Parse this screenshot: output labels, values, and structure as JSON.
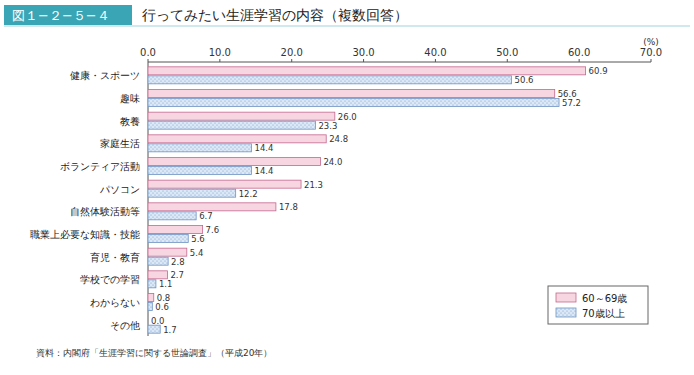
{
  "chart_data": {
    "type": "bar",
    "orientation": "horizontal",
    "figure_number": "図１−２−５−４",
    "title": "行ってみたい生涯学習の内容（複数回答）",
    "x_label": "(%)",
    "source": "資料：内閣府「生涯学習に関する世論調査」（平成20年）",
    "categories": [
      "健康・スポーツ",
      "趣味",
      "教養",
      "家庭生活",
      "ボランティア活動",
      "パソコン",
      "自然体験活動等",
      "職業上必要な知識・技能",
      "育児・教育",
      "学校での学習",
      "わからない",
      "その他"
    ],
    "series": [
      {
        "name": "60～69歳",
        "color": "#f7d6e2",
        "values": [
          60.9,
          56.6,
          26.0,
          24.8,
          24.0,
          21.3,
          17.8,
          7.6,
          5.4,
          2.7,
          0.8,
          0.0
        ],
        "value_labels": [
          "60.9",
          "56.6",
          "26.0",
          "24.8",
          "24.0",
          "21.3",
          "17.8",
          "7.6",
          "5.4",
          "2.7",
          "0.8",
          "0.0"
        ]
      },
      {
        "name": "70歳以上",
        "color": "#dbe8f6",
        "values": [
          50.6,
          57.2,
          23.3,
          14.4,
          14.4,
          12.2,
          6.7,
          5.6,
          2.8,
          1.1,
          0.6,
          1.7
        ],
        "value_labels": [
          "50.6",
          "57.2",
          "23.3",
          "14.4",
          "14.4",
          "12.2",
          "6.7",
          "5.6",
          "2.8",
          "1.1",
          "0.6",
          "1.7"
        ]
      }
    ],
    "xlim": [
      0,
      70
    ],
    "xticks": [
      {
        "value": 0,
        "label": "0.0"
      },
      {
        "value": 10,
        "label": "10.0"
      },
      {
        "value": 20,
        "label": "20.0"
      },
      {
        "value": 30,
        "label": "30.0"
      },
      {
        "value": 40,
        "label": "40.0"
      },
      {
        "value": 50,
        "label": "50.0"
      },
      {
        "value": 60,
        "label": "60.0"
      },
      {
        "value": 70,
        "label": "70.0"
      }
    ],
    "grid": false,
    "legend": "bottom-right",
    "data_labels": true
  }
}
